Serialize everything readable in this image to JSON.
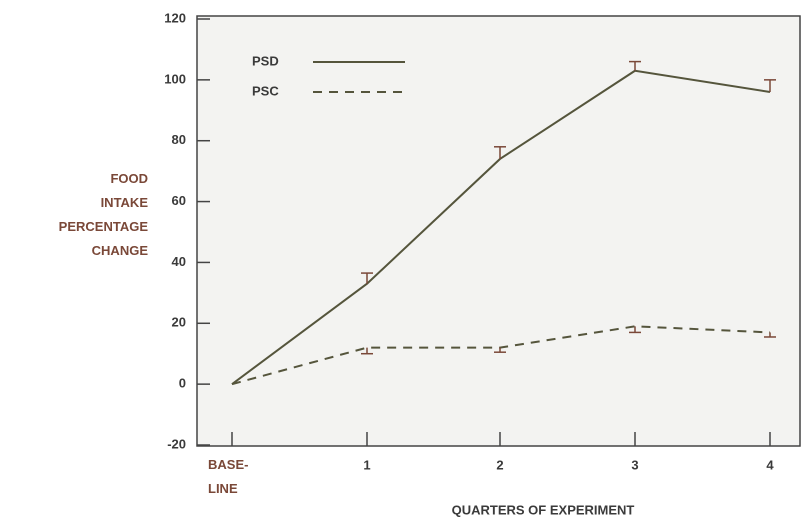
{
  "chart_data": {
    "type": "line",
    "ylabel": "FOOD INTAKE PERCENTAGE CHANGE",
    "xlabel": "QUARTERS OF EXPERIMENT",
    "categories": [
      "BASE-LINE",
      "1",
      "2",
      "3",
      "4"
    ],
    "series": [
      {
        "name": "PSD",
        "color": "#55553c",
        "dash": "solid",
        "error_direction": "up",
        "values": [
          0,
          33,
          74,
          103,
          96
        ],
        "errors": [
          0,
          3.5,
          4,
          3,
          4
        ]
      },
      {
        "name": "PSC",
        "color": "#55553c",
        "dash": "dashed",
        "error_direction": "down",
        "values": [
          0,
          12,
          12,
          19,
          17
        ],
        "errors": [
          0,
          2,
          1.5,
          2,
          1.5
        ]
      }
    ],
    "ylim": [
      -20,
      120
    ],
    "yticks": [
      -20,
      0,
      20,
      40,
      60,
      80,
      100,
      120
    ],
    "legend": "upper left"
  }
}
